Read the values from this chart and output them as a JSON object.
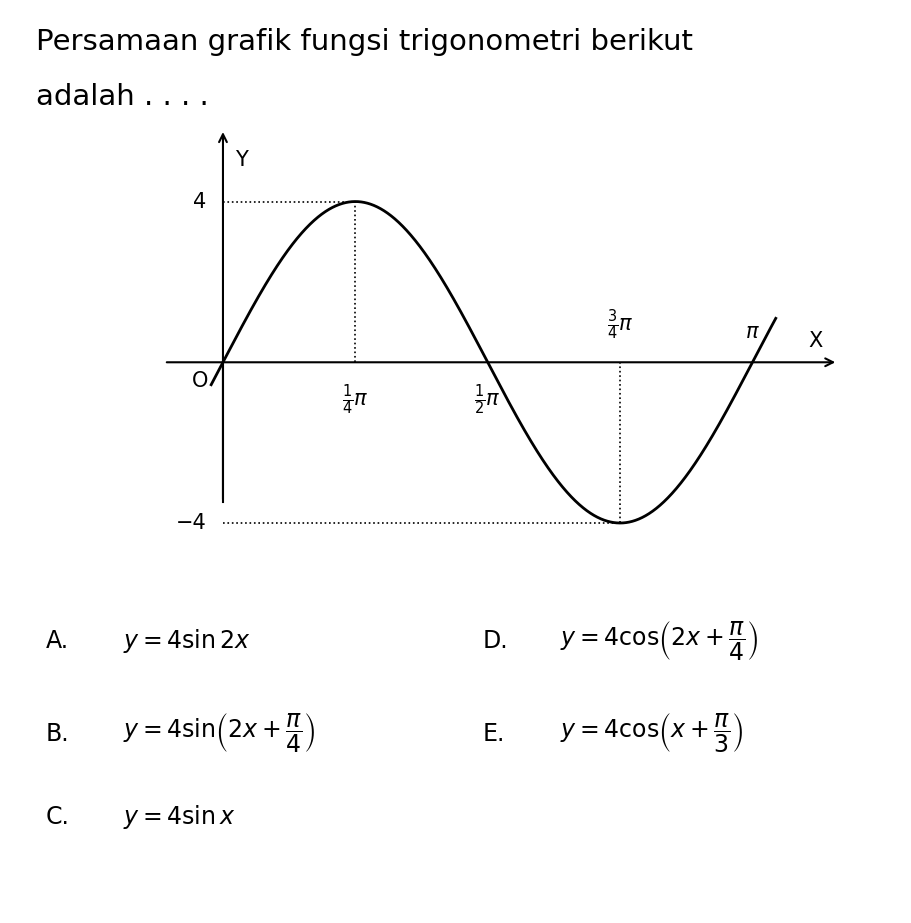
{
  "title_line1": "Persamaan grafik fungsi trigonometri berikut",
  "title_line2": "adalah . . . .",
  "title_fontsize": 21,
  "amplitude": 4,
  "frequency": 2,
  "phase": 0,
  "x_plot_start": -0.07,
  "x_plot_end": 3.28,
  "ylim": [
    -5.8,
    5.8
  ],
  "xlim": [
    -0.35,
    3.65
  ],
  "peak_x": 0.7853981633974483,
  "trough_x": 2.356194490192345,
  "half_pi": 1.5707963267948966,
  "pi_val": 3.141592653589793,
  "curve_color": "#000000",
  "curve_linewidth": 2.0,
  "dot_linewidth": 1.2,
  "bg_color": "#ffffff",
  "label_4": "4",
  "label_neg4": "−4",
  "label_O": "O",
  "label_Y": "Y",
  "label_X": "X",
  "option_fontsize": 17
}
